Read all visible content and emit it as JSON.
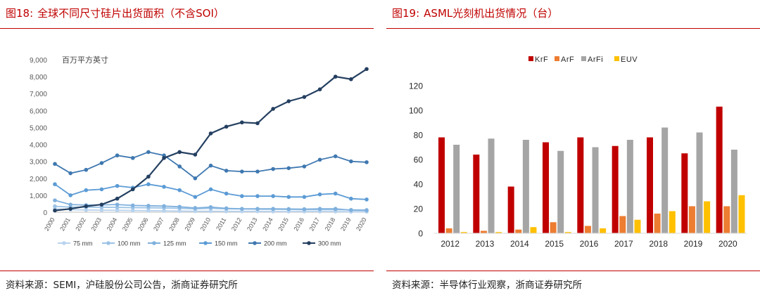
{
  "left": {
    "fig_label": "图18:",
    "title": "全球不同尺寸硅片出货面积（不含SOI）",
    "source": "资料来源：SEMI，沪硅股份公司公告，浙商证券研究所",
    "chart_data": {
      "type": "line",
      "unit_label": "百万平方英寸",
      "x": [
        "2000",
        "2001",
        "2002",
        "2003",
        "2004",
        "2005",
        "2006",
        "2007",
        "2008",
        "2009",
        "2010",
        "2011",
        "2012",
        "2013",
        "2014",
        "2015",
        "2016",
        "2017",
        "2018",
        "2019",
        "2020"
      ],
      "ylim": [
        0,
        9000
      ],
      "yticks": [
        "0",
        "1,000",
        "2,000",
        "3,000",
        "4,000",
        "5,000",
        "6,000",
        "7,000",
        "8,000",
        "9,000"
      ],
      "grid": false,
      "legend_position": "bottom",
      "series": [
        {
          "name": "75 mm",
          "color": "#b9d3ee",
          "values": [
            200,
            150,
            130,
            120,
            110,
            100,
            90,
            80,
            70,
            60,
            60,
            50,
            50,
            50,
            40,
            40,
            40,
            40,
            40,
            30,
            30
          ]
        },
        {
          "name": "100 mm",
          "color": "#9cc3e6",
          "values": [
            350,
            300,
            300,
            290,
            280,
            270,
            260,
            250,
            230,
            200,
            230,
            200,
            190,
            180,
            170,
            160,
            150,
            150,
            150,
            140,
            130
          ]
        },
        {
          "name": "125 mm",
          "color": "#7fb0dd",
          "values": [
            700,
            450,
            420,
            430,
            450,
            400,
            380,
            360,
            320,
            250,
            300,
            230,
            200,
            200,
            200,
            190,
            180,
            200,
            200,
            120,
            110
          ]
        },
        {
          "name": "150 mm",
          "color": "#5b9bd5",
          "values": [
            1650,
            1000,
            1300,
            1350,
            1550,
            1450,
            1650,
            1500,
            1300,
            900,
            1350,
            1100,
            950,
            950,
            950,
            900,
            900,
            1050,
            1100,
            800,
            750
          ]
        },
        {
          "name": "200 mm",
          "color": "#3f78b0",
          "values": [
            2850,
            2300,
            2500,
            2900,
            3350,
            3200,
            3550,
            3350,
            2700,
            2000,
            2750,
            2450,
            2400,
            2400,
            2550,
            2600,
            2700,
            3100,
            3300,
            3000,
            2950
          ]
        },
        {
          "name": "300 mm",
          "color": "#243f60",
          "values": [
            100,
            200,
            350,
            450,
            800,
            1350,
            2100,
            3200,
            3550,
            3400,
            4650,
            5050,
            5300,
            5250,
            6100,
            6550,
            6800,
            7250,
            8000,
            7850,
            8450
          ]
        }
      ]
    }
  },
  "right": {
    "fig_label": "图19:",
    "title": "ASML光刻机出货情况（台）",
    "source": "资料来源：半导体行业观察，浙商证券研究所",
    "chart_data": {
      "type": "bar",
      "categories": [
        "2012",
        "2013",
        "2014",
        "2015",
        "2016",
        "2017",
        "2018",
        "2019",
        "2020"
      ],
      "ylim": [
        0,
        120
      ],
      "yticks": [
        "0",
        "20",
        "40",
        "60",
        "80",
        "100",
        "120"
      ],
      "grid": false,
      "legend_position": "top",
      "series": [
        {
          "name": "KrF",
          "color": "#c00000",
          "values": [
            78,
            64,
            38,
            74,
            78,
            71,
            78,
            65,
            103
          ]
        },
        {
          "name": "ArF",
          "color": "#ed7d31",
          "values": [
            4,
            2,
            3,
            9,
            6,
            14,
            16,
            22,
            22
          ]
        },
        {
          "name": "ArFi",
          "color": "#a5a5a5",
          "values": [
            72,
            77,
            76,
            67,
            70,
            76,
            86,
            82,
            68
          ]
        },
        {
          "name": "EUV",
          "color": "#ffc000",
          "values": [
            1,
            1,
            5,
            1,
            4,
            11,
            18,
            26,
            31
          ]
        }
      ]
    }
  }
}
